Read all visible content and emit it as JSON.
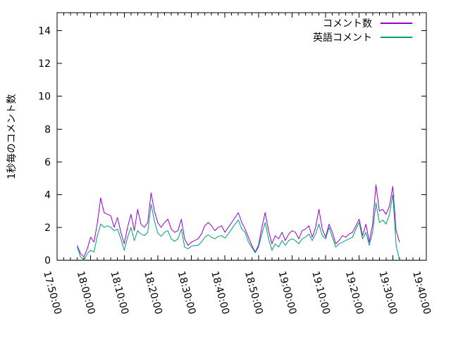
{
  "figure": {
    "background": "#ffffff",
    "border_color": "#000000"
  },
  "y_axis_title": "1秒毎のコメント数",
  "legend": {
    "items": [
      {
        "label": "コメント数",
        "color": "#9400D3"
      },
      {
        "label": "英語コメント",
        "color": "#009E73"
      }
    ]
  },
  "chart_data": {
    "type": "line",
    "title": "",
    "xlabel": "",
    "ylabel": "1秒毎のコメント数",
    "grid": false,
    "legend_position": "top-right-inside",
    "x_unit": "minutes after 17:50:00",
    "xlim": [
      0,
      110
    ],
    "ylim": [
      0,
      15.1
    ],
    "y_ticks": [
      0,
      2,
      4,
      6,
      8,
      10,
      12,
      14
    ],
    "x_minor_tick_step": 2,
    "x_ticks": [
      {
        "minute": 0,
        "label": "17:50:00"
      },
      {
        "minute": 10,
        "label": "18:00:00"
      },
      {
        "minute": 20,
        "label": "18:10:00"
      },
      {
        "minute": 30,
        "label": "18:20:00"
      },
      {
        "minute": 40,
        "label": "18:30:00"
      },
      {
        "minute": 50,
        "label": "18:40:00"
      },
      {
        "minute": 60,
        "label": "18:50:00"
      },
      {
        "minute": 70,
        "label": "19:00:00"
      },
      {
        "minute": 80,
        "label": "19:10:00"
      },
      {
        "minute": 90,
        "label": "19:20:00"
      },
      {
        "minute": 100,
        "label": "19:30:00"
      },
      {
        "minute": 110,
        "label": "19:40:00"
      }
    ],
    "x_minutes": [
      6,
      7,
      8,
      9,
      10,
      11,
      12,
      13,
      14,
      15,
      16,
      17,
      18,
      19,
      20,
      21,
      22,
      23,
      24,
      25,
      26,
      27,
      28,
      29,
      30,
      31,
      32,
      33,
      34,
      35,
      36,
      37,
      38,
      39,
      40,
      41,
      42,
      43,
      44,
      45,
      46,
      47,
      48,
      49,
      50,
      51,
      52,
      53,
      54,
      55,
      56,
      57,
      58,
      59,
      60,
      61,
      62,
      63,
      64,
      65,
      66,
      67,
      68,
      69,
      70,
      71,
      72,
      73,
      74,
      75,
      76,
      77,
      78,
      79,
      80,
      81,
      82,
      83,
      84,
      85,
      86,
      87,
      88,
      89,
      90,
      91,
      92,
      93,
      94,
      95,
      96,
      97,
      98,
      99,
      100,
      101,
      102
    ],
    "series": [
      {
        "name": "コメント数",
        "color": "#9400D3",
        "values": [
          0.9,
          0.4,
          0.2,
          0.7,
          1.4,
          1.1,
          2.3,
          3.8,
          2.9,
          2.8,
          2.7,
          2.0,
          2.6,
          1.7,
          1.0,
          2.0,
          2.8,
          1.8,
          3.1,
          2.2,
          2.0,
          2.3,
          4.1,
          3.0,
          2.3,
          2.0,
          2.3,
          2.5,
          1.9,
          1.7,
          1.8,
          2.5,
          1.3,
          0.9,
          1.1,
          1.2,
          1.3,
          1.6,
          2.1,
          2.3,
          2.1,
          1.8,
          2.0,
          2.1,
          1.7,
          2.0,
          2.3,
          2.6,
          2.9,
          2.3,
          1.9,
          1.4,
          0.9,
          0.5,
          0.9,
          2.0,
          2.9,
          1.8,
          1.0,
          1.5,
          1.3,
          1.7,
          1.2,
          1.6,
          1.8,
          1.7,
          1.3,
          1.8,
          1.9,
          2.1,
          1.4,
          2.0,
          3.1,
          1.9,
          1.4,
          2.2,
          1.7,
          1.0,
          1.2,
          1.5,
          1.4,
          1.6,
          1.7,
          2.1,
          2.5,
          1.5,
          2.2,
          1.1,
          2.2,
          4.6,
          3.0,
          3.1,
          2.8,
          3.3,
          4.5,
          1.8,
          1.1
        ]
      },
      {
        "name": "英語コメント",
        "color": "#009E73",
        "values": [
          0.8,
          0.2,
          0.0,
          0.4,
          0.6,
          0.5,
          1.5,
          2.2,
          2.0,
          2.1,
          2.0,
          1.8,
          1.9,
          1.3,
          0.6,
          1.4,
          2.0,
          1.2,
          1.8,
          1.6,
          1.5,
          1.7,
          3.4,
          2.4,
          1.65,
          1.45,
          1.7,
          1.8,
          1.3,
          1.15,
          1.3,
          1.9,
          0.8,
          0.7,
          0.85,
          0.9,
          0.9,
          1.1,
          1.4,
          1.55,
          1.4,
          1.3,
          1.45,
          1.5,
          1.35,
          1.6,
          1.9,
          2.2,
          2.45,
          1.9,
          1.7,
          1.1,
          0.8,
          0.45,
          0.8,
          1.6,
          2.3,
          1.3,
          0.6,
          1.0,
          0.8,
          1.2,
          0.9,
          1.2,
          1.3,
          1.2,
          1.0,
          1.3,
          1.4,
          1.6,
          1.2,
          1.6,
          2.2,
          1.5,
          1.3,
          2.0,
          1.4,
          0.8,
          1.0,
          1.1,
          1.2,
          1.3,
          1.4,
          1.9,
          2.3,
          1.3,
          1.7,
          0.9,
          1.7,
          3.5,
          2.3,
          2.45,
          2.2,
          2.8,
          4.0,
          0.9,
          0.0
        ]
      }
    ]
  }
}
